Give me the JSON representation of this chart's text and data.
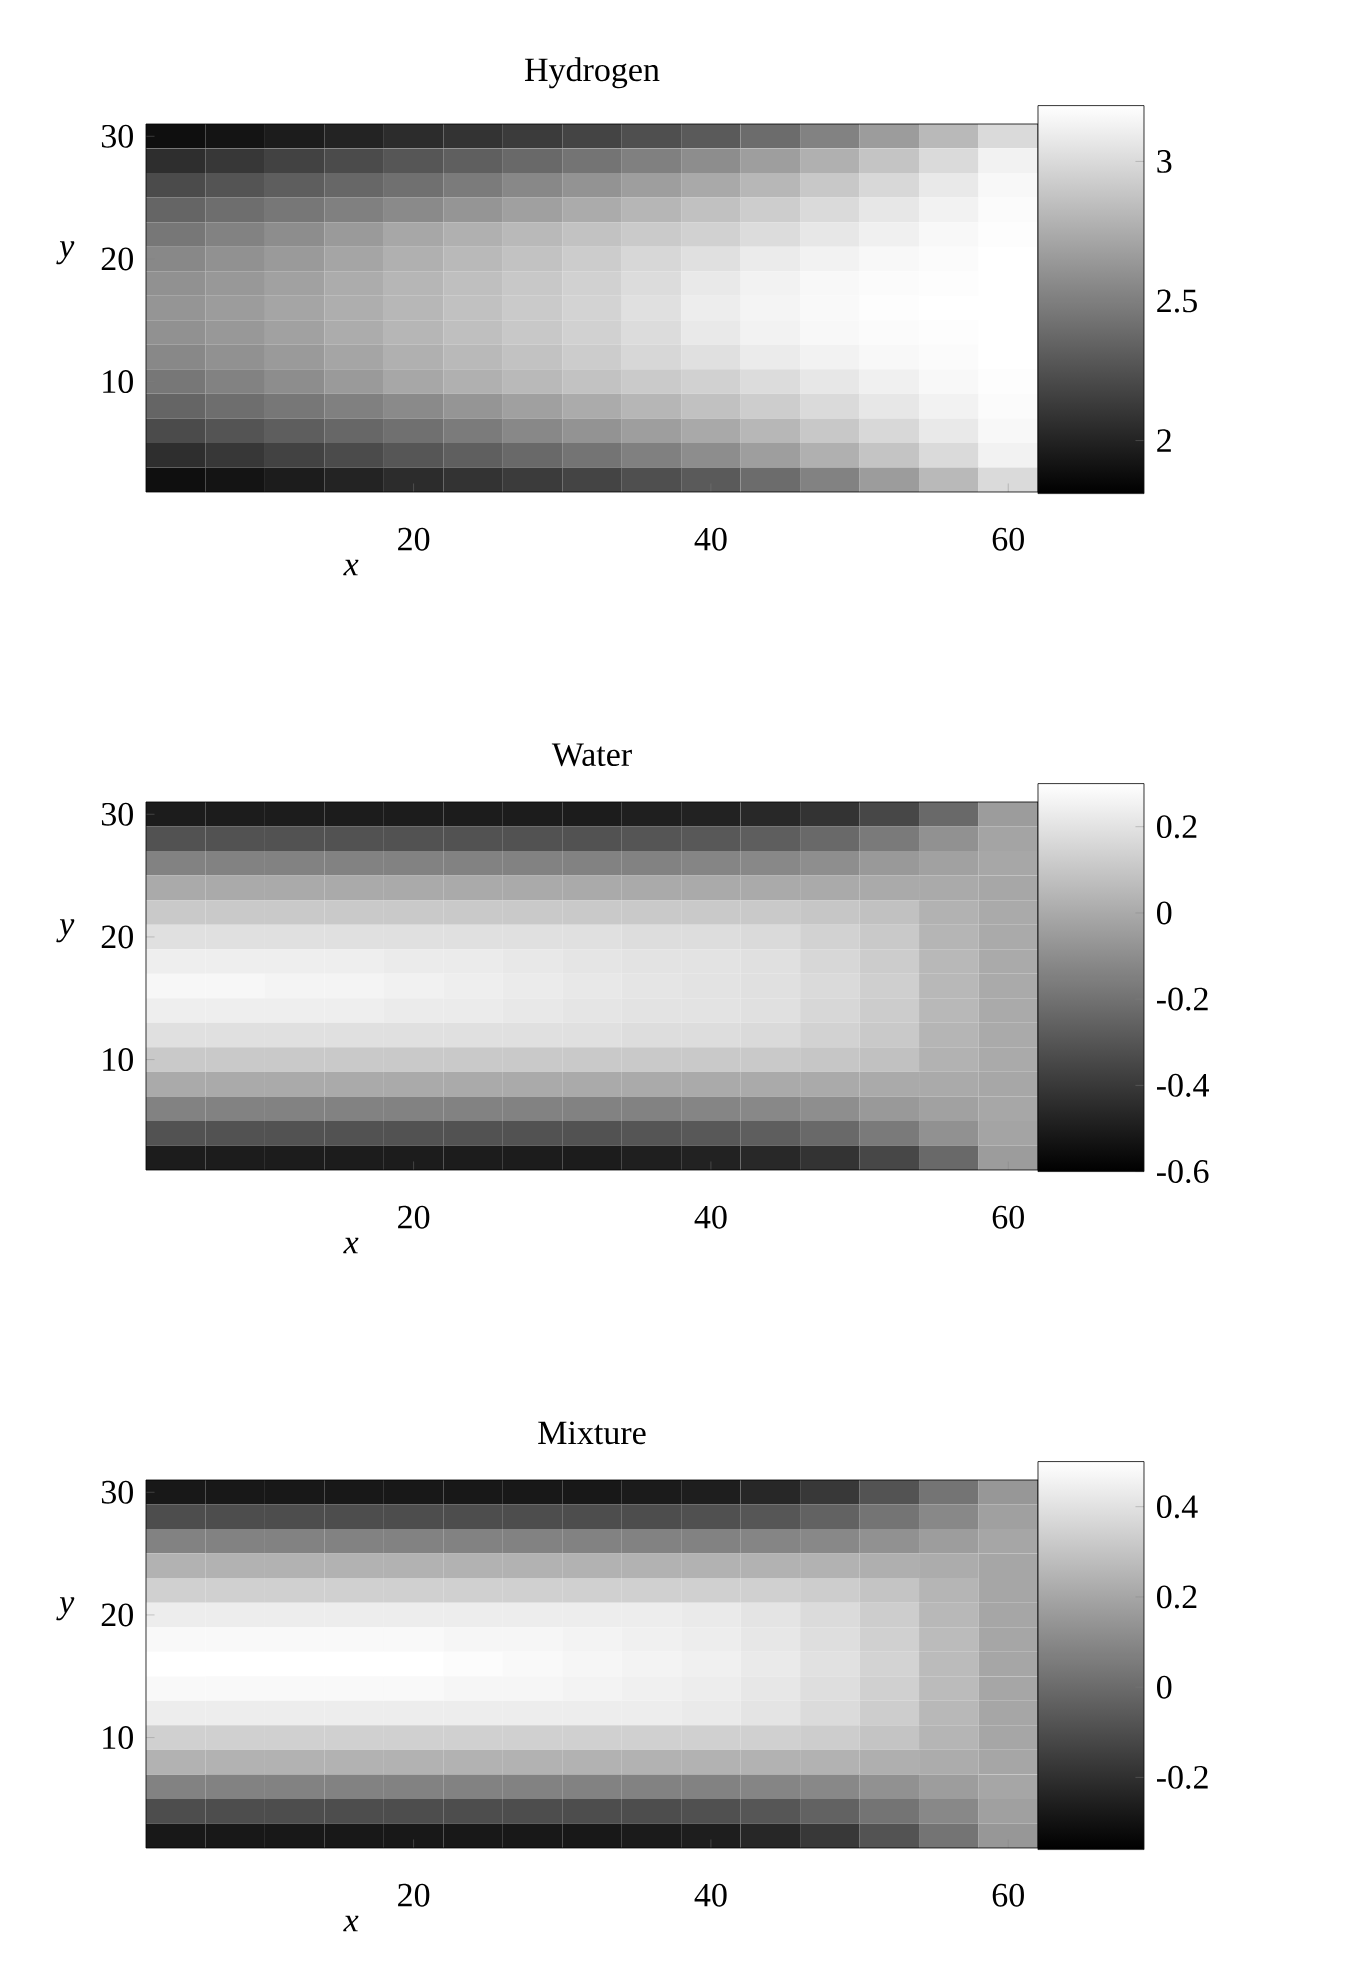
{
  "chart_data": [
    {
      "type": "heatmap",
      "title": "Hydrogen",
      "xlabel": "x",
      "ylabel": "y",
      "categories": [
        null,
        null,
        null,
        null,
        "20",
        null,
        null,
        null,
        null,
        "40",
        null,
        null,
        null,
        null,
        "60"
      ],
      "y_categories": [
        "30",
        null,
        null,
        null,
        null,
        "20",
        null,
        null,
        null,
        null,
        "10",
        null,
        null,
        null,
        null
      ],
      "cells": [
        [
          1.89,
          1.92,
          1.96,
          2.0,
          2.05,
          2.09,
          2.13,
          2.18,
          2.24,
          2.3,
          2.4,
          2.52,
          2.66,
          2.82,
          3.0
        ],
        [
          2.06,
          2.11,
          2.17,
          2.22,
          2.28,
          2.33,
          2.38,
          2.44,
          2.51,
          2.58,
          2.67,
          2.77,
          2.88,
          3.0,
          3.13
        ],
        [
          2.22,
          2.27,
          2.32,
          2.37,
          2.42,
          2.48,
          2.55,
          2.61,
          2.67,
          2.73,
          2.81,
          2.9,
          2.99,
          3.08,
          3.16
        ],
        [
          2.36,
          2.41,
          2.46,
          2.51,
          2.56,
          2.62,
          2.68,
          2.74,
          2.8,
          2.86,
          2.93,
          3.0,
          3.07,
          3.13,
          3.18
        ],
        [
          2.46,
          2.52,
          2.58,
          2.65,
          2.72,
          2.77,
          2.82,
          2.87,
          2.91,
          2.95,
          3.01,
          3.07,
          3.12,
          3.16,
          3.19
        ],
        [
          2.55,
          2.6,
          2.65,
          2.71,
          2.77,
          2.82,
          2.87,
          2.92,
          2.98,
          3.03,
          3.09,
          3.13,
          3.16,
          3.18,
          3.2
        ],
        [
          2.6,
          2.64,
          2.69,
          2.75,
          2.8,
          2.85,
          2.9,
          2.95,
          3.01,
          3.08,
          3.13,
          3.16,
          3.18,
          3.19,
          3.2
        ],
        [
          2.62,
          2.66,
          2.71,
          2.76,
          2.81,
          2.86,
          2.91,
          2.96,
          3.03,
          3.1,
          3.14,
          3.17,
          3.19,
          3.2,
          3.2
        ],
        [
          2.6,
          2.64,
          2.69,
          2.75,
          2.8,
          2.85,
          2.9,
          2.95,
          3.01,
          3.08,
          3.13,
          3.16,
          3.18,
          3.19,
          3.2
        ],
        [
          2.55,
          2.6,
          2.65,
          2.71,
          2.77,
          2.82,
          2.87,
          2.92,
          2.98,
          3.03,
          3.09,
          3.13,
          3.16,
          3.18,
          3.2
        ],
        [
          2.46,
          2.52,
          2.58,
          2.65,
          2.72,
          2.77,
          2.82,
          2.87,
          2.91,
          2.95,
          3.01,
          3.07,
          3.12,
          3.16,
          3.19
        ],
        [
          2.36,
          2.41,
          2.46,
          2.51,
          2.56,
          2.62,
          2.68,
          2.74,
          2.8,
          2.86,
          2.93,
          3.0,
          3.07,
          3.13,
          3.18
        ],
        [
          2.22,
          2.27,
          2.32,
          2.37,
          2.42,
          2.48,
          2.55,
          2.61,
          2.67,
          2.73,
          2.81,
          2.9,
          2.99,
          3.08,
          3.16
        ],
        [
          2.06,
          2.11,
          2.17,
          2.22,
          2.28,
          2.33,
          2.38,
          2.44,
          2.51,
          2.58,
          2.67,
          2.77,
          2.88,
          3.0,
          3.13
        ],
        [
          1.89,
          1.92,
          1.96,
          2.0,
          2.05,
          2.09,
          2.13,
          2.18,
          2.24,
          2.3,
          2.4,
          2.52,
          2.66,
          2.82,
          3.0
        ]
      ],
      "clim": [
        1.81,
        3.2
      ],
      "cticks": [
        2,
        2.5,
        3
      ]
    },
    {
      "type": "heatmap",
      "title": "Water",
      "xlabel": "x",
      "ylabel": "y",
      "categories": [
        null,
        null,
        null,
        null,
        "20",
        null,
        null,
        null,
        null,
        "40",
        null,
        null,
        null,
        null,
        "60"
      ],
      "y_categories": [
        "30",
        null,
        null,
        null,
        null,
        "20",
        null,
        null,
        null,
        null,
        "10",
        null,
        null,
        null,
        null
      ],
      "cells": [
        [
          -0.5,
          -0.5,
          -0.5,
          -0.5,
          -0.5,
          -0.5,
          -0.5,
          -0.5,
          -0.49,
          -0.48,
          -0.46,
          -0.42,
          -0.35,
          -0.23,
          -0.05
        ],
        [
          -0.31,
          -0.31,
          -0.31,
          -0.31,
          -0.31,
          -0.31,
          -0.31,
          -0.31,
          -0.3,
          -0.29,
          -0.27,
          -0.23,
          -0.17,
          -0.09,
          -0.02
        ],
        [
          -0.14,
          -0.14,
          -0.14,
          -0.14,
          -0.14,
          -0.14,
          -0.14,
          -0.14,
          -0.14,
          -0.13,
          -0.12,
          -0.1,
          -0.06,
          -0.03,
          -0.01
        ],
        [
          0.0,
          0.0,
          0.0,
          0.0,
          0.0,
          0.0,
          0.0,
          0.0,
          0.0,
          0.0,
          0.0,
          0.0,
          0.0,
          0.0,
          -0.01
        ],
        [
          0.11,
          0.11,
          0.11,
          0.11,
          0.11,
          0.11,
          0.11,
          0.11,
          0.11,
          0.11,
          0.11,
          0.1,
          0.08,
          0.03,
          0.0
        ],
        [
          0.19,
          0.19,
          0.19,
          0.19,
          0.19,
          0.19,
          0.19,
          0.19,
          0.18,
          0.18,
          0.17,
          0.14,
          0.11,
          0.04,
          0.0
        ],
        [
          0.24,
          0.24,
          0.24,
          0.24,
          0.23,
          0.23,
          0.22,
          0.21,
          0.2,
          0.2,
          0.19,
          0.16,
          0.12,
          0.05,
          0.0
        ],
        [
          0.27,
          0.27,
          0.26,
          0.26,
          0.25,
          0.24,
          0.23,
          0.22,
          0.21,
          0.2,
          0.19,
          0.17,
          0.13,
          0.05,
          0.0
        ],
        [
          0.24,
          0.24,
          0.24,
          0.24,
          0.23,
          0.23,
          0.22,
          0.21,
          0.2,
          0.2,
          0.19,
          0.16,
          0.12,
          0.05,
          0.0
        ],
        [
          0.19,
          0.19,
          0.19,
          0.19,
          0.19,
          0.19,
          0.19,
          0.19,
          0.18,
          0.18,
          0.17,
          0.14,
          0.11,
          0.04,
          0.0
        ],
        [
          0.11,
          0.11,
          0.11,
          0.11,
          0.11,
          0.11,
          0.11,
          0.11,
          0.11,
          0.11,
          0.11,
          0.1,
          0.08,
          0.03,
          0.0
        ],
        [
          0.0,
          0.0,
          0.0,
          0.0,
          0.0,
          0.0,
          0.0,
          0.0,
          0.0,
          0.0,
          0.0,
          0.0,
          0.0,
          0.0,
          -0.01
        ],
        [
          -0.14,
          -0.14,
          -0.14,
          -0.14,
          -0.14,
          -0.14,
          -0.14,
          -0.14,
          -0.14,
          -0.13,
          -0.12,
          -0.1,
          -0.06,
          -0.03,
          -0.01
        ],
        [
          -0.31,
          -0.31,
          -0.31,
          -0.31,
          -0.31,
          -0.31,
          -0.31,
          -0.31,
          -0.3,
          -0.29,
          -0.27,
          -0.23,
          -0.17,
          -0.09,
          -0.02
        ],
        [
          -0.5,
          -0.5,
          -0.5,
          -0.5,
          -0.5,
          -0.5,
          -0.5,
          -0.5,
          -0.49,
          -0.48,
          -0.46,
          -0.42,
          -0.35,
          -0.23,
          -0.05
        ]
      ],
      "clim": [
        -0.6,
        0.3
      ],
      "cticks": [
        -0.6,
        -0.4,
        -0.2,
        0,
        0.2
      ]
    },
    {
      "type": "heatmap",
      "title": "Mixture",
      "xlabel": "x",
      "ylabel": "y",
      "categories": [
        null,
        null,
        null,
        null,
        "20",
        null,
        null,
        null,
        null,
        "40",
        null,
        null,
        null,
        null,
        "60"
      ],
      "y_categories": [
        "30",
        null,
        null,
        null,
        null,
        "20",
        null,
        null,
        null,
        null,
        "10",
        null,
        null,
        null,
        null
      ],
      "cells": [
        [
          -0.28,
          -0.28,
          -0.28,
          -0.28,
          -0.28,
          -0.28,
          -0.28,
          -0.28,
          -0.27,
          -0.26,
          -0.23,
          -0.17,
          -0.08,
          0.03,
          0.15
        ],
        [
          -0.1,
          -0.1,
          -0.1,
          -0.1,
          -0.1,
          -0.1,
          -0.1,
          -0.1,
          -0.1,
          -0.09,
          -0.07,
          -0.03,
          0.03,
          0.1,
          0.18
        ],
        [
          0.08,
          0.08,
          0.08,
          0.08,
          0.08,
          0.08,
          0.08,
          0.08,
          0.08,
          0.08,
          0.09,
          0.1,
          0.13,
          0.17,
          0.2
        ],
        [
          0.24,
          0.24,
          0.24,
          0.24,
          0.24,
          0.24,
          0.24,
          0.24,
          0.24,
          0.24,
          0.24,
          0.24,
          0.23,
          0.22,
          0.2
        ],
        [
          0.34,
          0.34,
          0.34,
          0.34,
          0.34,
          0.34,
          0.34,
          0.34,
          0.34,
          0.34,
          0.34,
          0.33,
          0.3,
          0.25,
          0.2
        ],
        [
          0.44,
          0.44,
          0.44,
          0.44,
          0.44,
          0.44,
          0.44,
          0.44,
          0.44,
          0.43,
          0.41,
          0.38,
          0.33,
          0.26,
          0.2
        ],
        [
          0.48,
          0.48,
          0.48,
          0.48,
          0.48,
          0.47,
          0.47,
          0.46,
          0.45,
          0.44,
          0.42,
          0.39,
          0.34,
          0.27,
          0.2
        ],
        [
          0.5,
          0.5,
          0.5,
          0.5,
          0.5,
          0.49,
          0.48,
          0.47,
          0.46,
          0.45,
          0.43,
          0.4,
          0.35,
          0.27,
          0.2
        ],
        [
          0.48,
          0.48,
          0.48,
          0.48,
          0.48,
          0.47,
          0.47,
          0.46,
          0.45,
          0.44,
          0.42,
          0.39,
          0.34,
          0.27,
          0.2
        ],
        [
          0.44,
          0.44,
          0.44,
          0.44,
          0.44,
          0.44,
          0.44,
          0.44,
          0.44,
          0.43,
          0.41,
          0.38,
          0.33,
          0.26,
          0.2
        ],
        [
          0.34,
          0.34,
          0.34,
          0.34,
          0.34,
          0.34,
          0.34,
          0.34,
          0.34,
          0.34,
          0.34,
          0.33,
          0.3,
          0.25,
          0.2
        ],
        [
          0.24,
          0.24,
          0.24,
          0.24,
          0.24,
          0.24,
          0.24,
          0.24,
          0.24,
          0.24,
          0.24,
          0.24,
          0.23,
          0.22,
          0.2
        ],
        [
          0.08,
          0.08,
          0.08,
          0.08,
          0.08,
          0.08,
          0.08,
          0.08,
          0.08,
          0.08,
          0.09,
          0.1,
          0.13,
          0.17,
          0.2
        ],
        [
          -0.1,
          -0.1,
          -0.1,
          -0.1,
          -0.1,
          -0.1,
          -0.1,
          -0.1,
          -0.1,
          -0.09,
          -0.07,
          -0.03,
          0.03,
          0.1,
          0.18
        ],
        [
          -0.28,
          -0.28,
          -0.28,
          -0.28,
          -0.28,
          -0.28,
          -0.28,
          -0.28,
          -0.27,
          -0.26,
          -0.23,
          -0.17,
          -0.08,
          0.03,
          0.15
        ]
      ],
      "clim": [
        -0.36,
        0.5
      ],
      "cticks": [
        -0.2,
        0,
        0.2,
        0.4
      ]
    }
  ]
}
